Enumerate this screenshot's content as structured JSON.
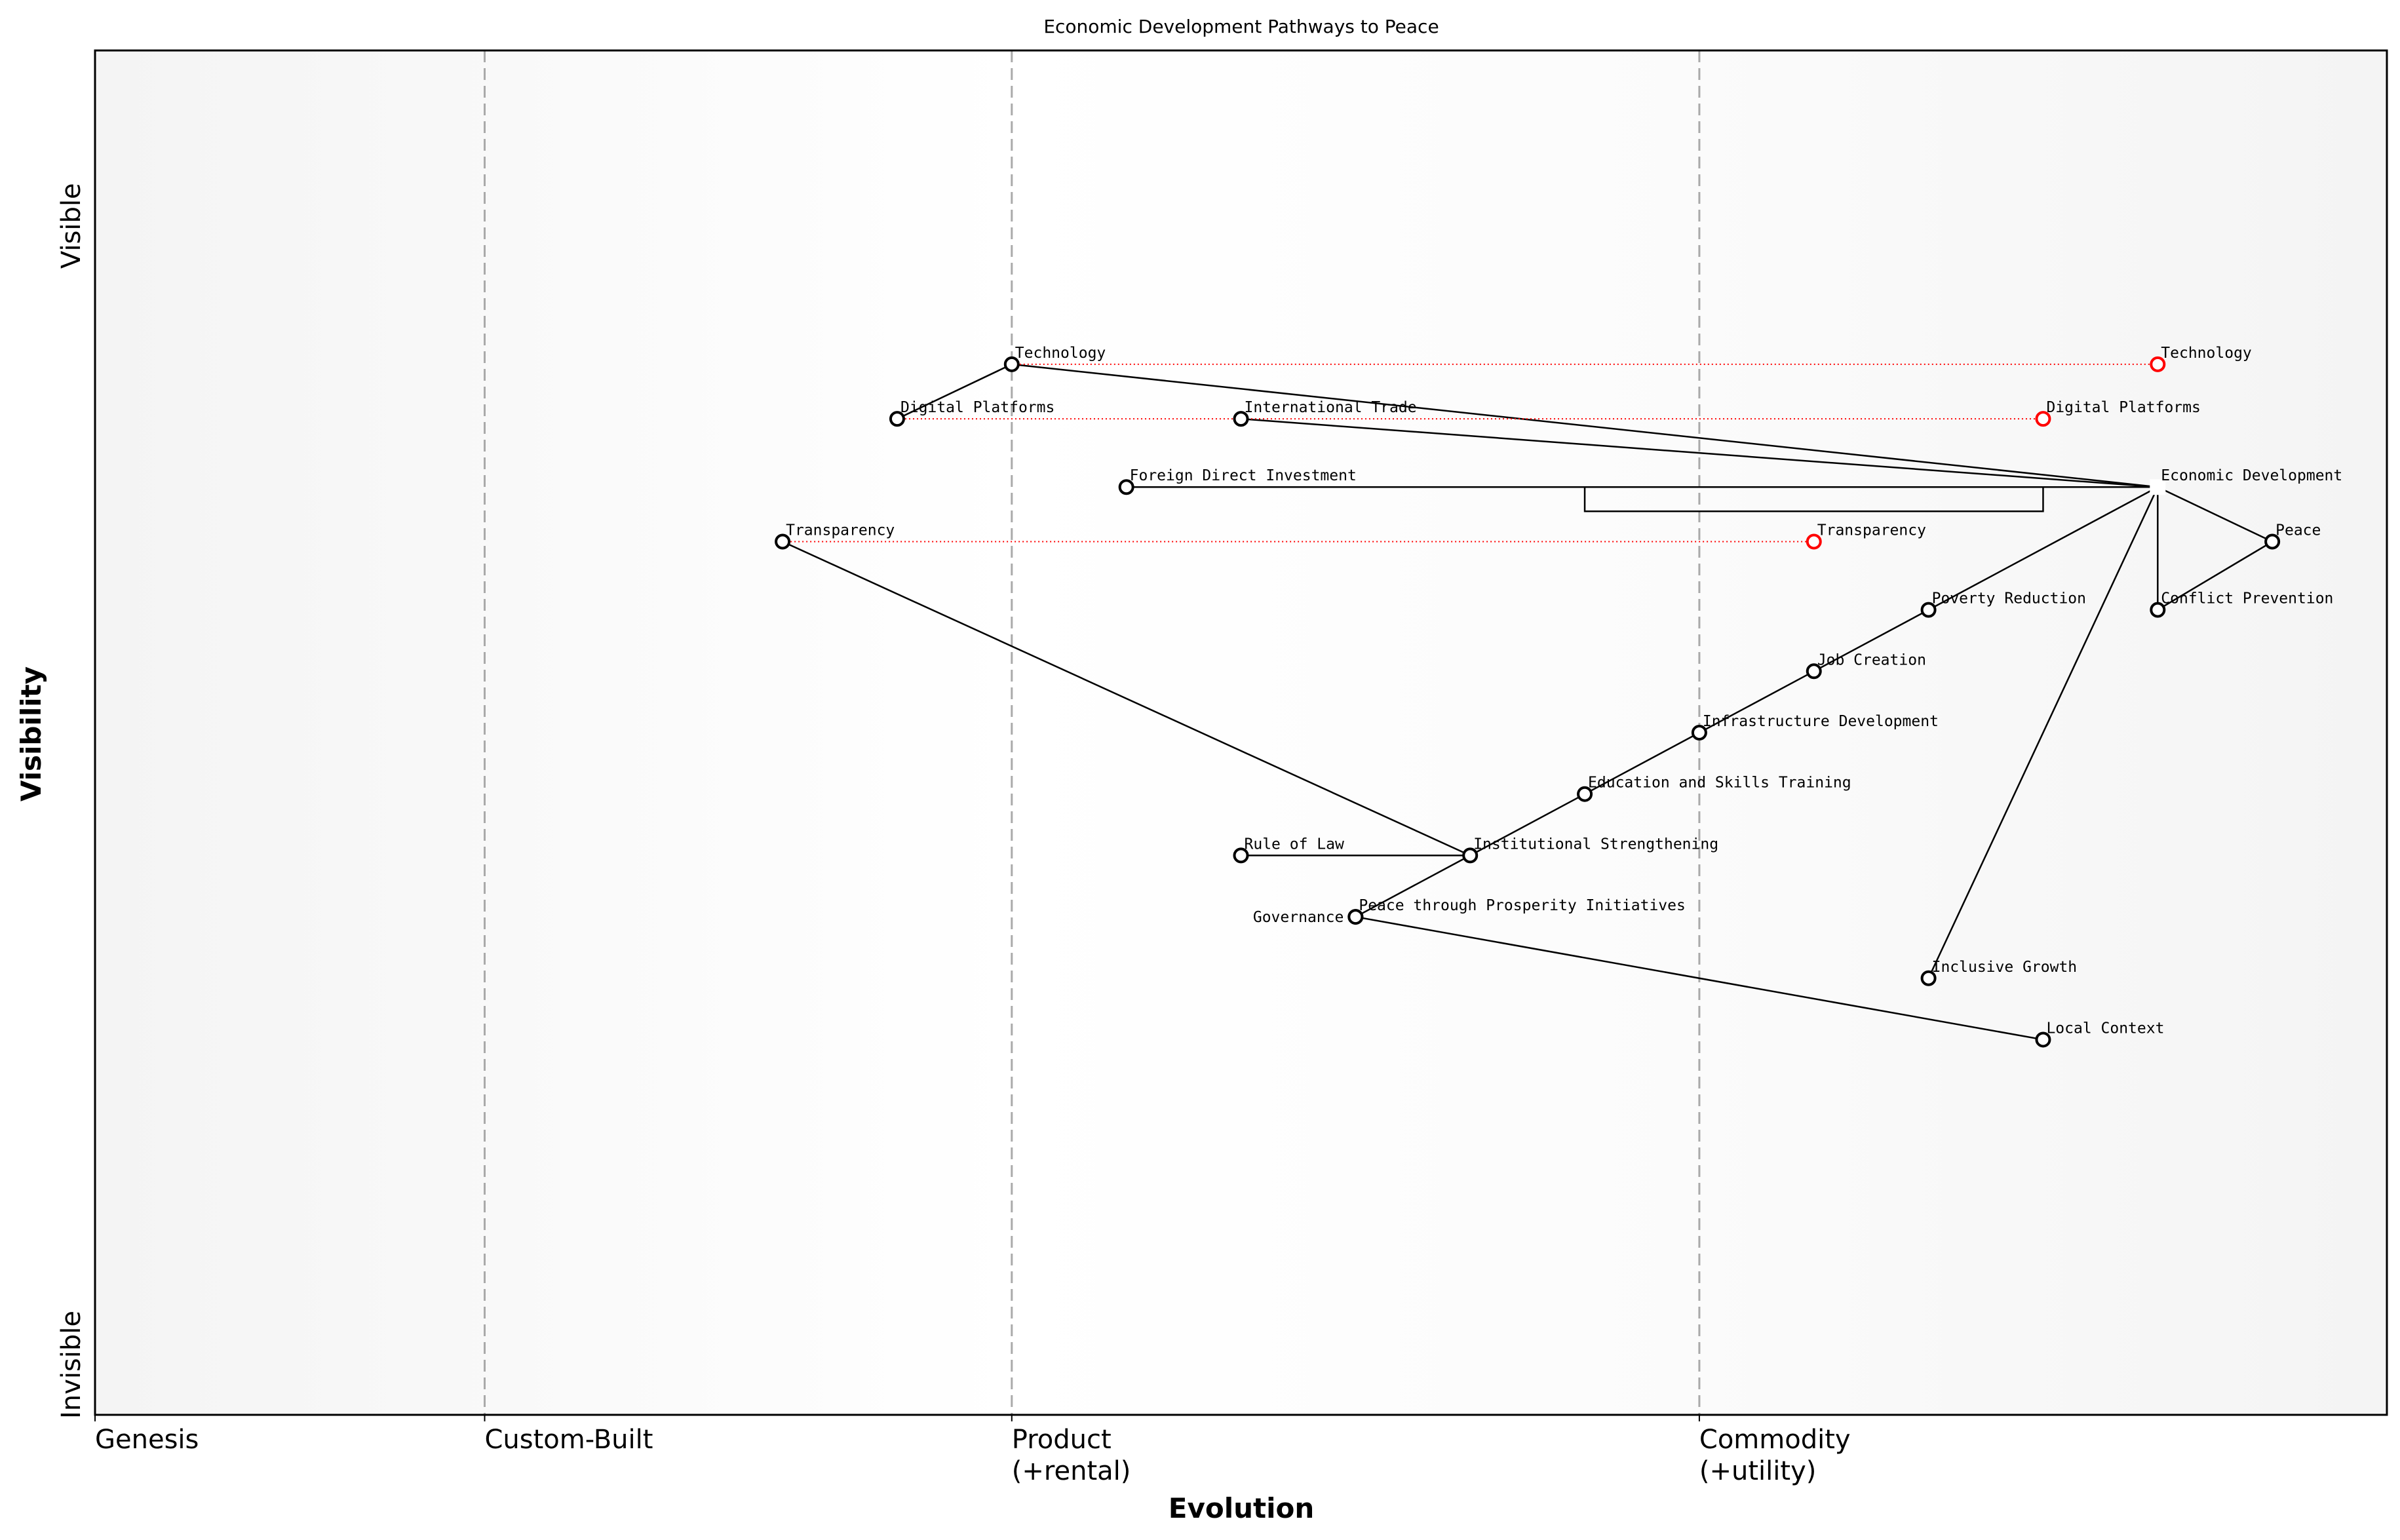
{
  "title": "Economic Development Pathways to Peace",
  "x_axis": {
    "label": "Evolution",
    "stages": [
      {
        "label": "Genesis",
        "at": 0.0
      },
      {
        "label": "Custom-Built",
        "at": 0.17
      },
      {
        "label": "Product",
        "sub": "(+rental)",
        "at": 0.4
      },
      {
        "label": "Commodity",
        "sub": "(+utility)",
        "at": 0.7
      }
    ]
  },
  "y_axis": {
    "label": "Visibility",
    "top": "Visible",
    "bottom": "Invisible"
  },
  "colors": {
    "component": "#000000",
    "evolved": "#ff0000",
    "link": "#000000",
    "stage_line": "#aaaaaa"
  },
  "components": [
    {
      "id": "economic-development",
      "name": "Economic Development",
      "evo": 0.9,
      "vis": 0.68,
      "marker": "square"
    },
    {
      "id": "peace",
      "name": "Peace",
      "evo": 0.95,
      "vis": 0.64
    },
    {
      "id": "conflict-prevention",
      "name": "Conflict Prevention",
      "evo": 0.9,
      "vis": 0.59
    },
    {
      "id": "technology",
      "name": "Technology",
      "evo": 0.4,
      "vis": 0.77
    },
    {
      "id": "digital-platforms",
      "name": "Digital Platforms",
      "evo": 0.35,
      "vis": 0.73
    },
    {
      "id": "international-trade",
      "name": "International Trade",
      "evo": 0.5,
      "vis": 0.73
    },
    {
      "id": "fdi",
      "name": "Foreign Direct Investment",
      "evo": 0.45,
      "vis": 0.68
    },
    {
      "id": "transparency",
      "name": "Transparency",
      "evo": 0.3,
      "vis": 0.64
    },
    {
      "id": "poverty-reduction",
      "name": "Poverty Reduction",
      "evo": 0.8,
      "vis": 0.59
    },
    {
      "id": "job-creation",
      "name": "Job Creation",
      "evo": 0.75,
      "vis": 0.545
    },
    {
      "id": "infrastructure",
      "name": "Infrastructure Development",
      "evo": 0.7,
      "vis": 0.5
    },
    {
      "id": "education",
      "name": "Education and Skills Training",
      "evo": 0.65,
      "vis": 0.455
    },
    {
      "id": "institutional",
      "name": "Institutional Strengthening",
      "evo": 0.6,
      "vis": 0.41
    },
    {
      "id": "rule-of-law",
      "name": "Rule of Law",
      "evo": 0.5,
      "vis": 0.41
    },
    {
      "id": "governance",
      "name": "Governance",
      "evo": 0.55,
      "vis": 0.365
    },
    {
      "id": "peace-through-prosperity",
      "name": "Peace through Prosperity Initiatives",
      "evo": 0.55,
      "vis": 0.365
    },
    {
      "id": "inclusive-growth",
      "name": "Inclusive Growth",
      "evo": 0.8,
      "vis": 0.32
    },
    {
      "id": "local-context",
      "name": "Local Context",
      "evo": 0.85,
      "vis": 0.275
    }
  ],
  "evolutions": [
    {
      "from": "technology",
      "name": "Technology",
      "evo": 0.9,
      "vis": 0.77
    },
    {
      "from": "digital-platforms",
      "name": "Digital Platforms",
      "evo": 0.85,
      "vis": 0.73
    },
    {
      "from": "transparency",
      "name": "Transparency",
      "evo": 0.75,
      "vis": 0.64
    }
  ],
  "links": [
    [
      "technology",
      "digital-platforms"
    ],
    [
      "technology",
      "economic-development"
    ],
    [
      "international-trade",
      "economic-development"
    ],
    [
      "fdi",
      "economic-development"
    ],
    [
      "economic-development",
      "peace"
    ],
    [
      "economic-development",
      "conflict-prevention"
    ],
    [
      "conflict-prevention",
      "peace"
    ],
    [
      "economic-development",
      "poverty-reduction"
    ],
    [
      "poverty-reduction",
      "job-creation"
    ],
    [
      "job-creation",
      "infrastructure"
    ],
    [
      "infrastructure",
      "education"
    ],
    [
      "education",
      "institutional"
    ],
    [
      "institutional",
      "governance"
    ],
    [
      "rule-of-law",
      "institutional"
    ],
    [
      "transparency",
      "institutional"
    ],
    [
      "governance",
      "local-context"
    ],
    [
      "economic-development",
      "inclusive-growth"
    ]
  ],
  "pipelines": [
    {
      "component": "economic-development",
      "start": 0.65,
      "end": 0.85
    }
  ]
}
